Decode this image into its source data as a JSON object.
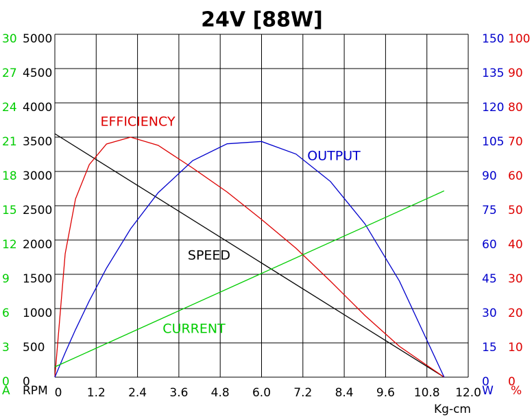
{
  "chart_data": {
    "type": "line",
    "title": "24V [88W]",
    "x_label": "Kg-cm",
    "xlim": [
      0,
      12
    ],
    "xticks": [
      0,
      1.2,
      2.4,
      3.6,
      4.8,
      {
        "value": 6,
        "label": "6.0"
      },
      7.2,
      8.4,
      9.6,
      10.8,
      {
        "value": 12,
        "label": "12.0"
      }
    ],
    "y_label": "RPM",
    "ylim": [
      0,
      5000
    ],
    "yticks": [
      0,
      500,
      1000,
      1500,
      2000,
      2500,
      3000,
      3500,
      4000,
      4500,
      5000
    ],
    "y_color": "#000000",
    "y2_label": "W",
    "y2lim": [
      0,
      150
    ],
    "y2ticks": [
      0,
      15,
      30,
      45,
      60,
      75,
      90,
      105,
      120,
      135,
      150
    ],
    "y2_color": "#0000cc",
    "y3_label": "A",
    "y3lim": [
      0,
      30
    ],
    "y3ticks": [
      0,
      3,
      6,
      9,
      12,
      15,
      18,
      21,
      24,
      27,
      30
    ],
    "y3_color": "#00cc00",
    "y4_label": "%",
    "y4lim": [
      0,
      100
    ],
    "y4ticks": [
      0,
      10,
      20,
      30,
      40,
      50,
      60,
      70,
      80,
      90,
      100
    ],
    "y4_color": "#dd0000",
    "grid": true,
    "series": [
      {
        "name": "SPEED",
        "color": "#000000",
        "axis": "y",
        "x": [
          0,
          11.3
        ],
        "values": [
          3550,
          0
        ]
      },
      {
        "name": "EFFICIENCY",
        "color": "#dd0000",
        "axis": "y4",
        "x": [
          0,
          0.3,
          0.6,
          1.0,
          1.5,
          2.2,
          3.0,
          4.0,
          5.0,
          6.0,
          7.0,
          8.0,
          9.0,
          10.0,
          11.3
        ],
        "values": [
          0,
          36,
          52,
          62,
          68,
          70,
          67.6,
          61,
          54,
          46,
          37.6,
          28,
          18,
          9,
          0
        ]
      },
      {
        "name": "OUTPUT",
        "color": "#0000cc",
        "axis": "y2",
        "x": [
          0,
          0.3,
          0.6,
          1.0,
          1.5,
          2.2,
          3.0,
          4.0,
          5.0,
          6.0,
          7.0,
          8.0,
          9.0,
          10.0,
          11.3
        ],
        "values": [
          0,
          10.7,
          20.8,
          33.4,
          47.7,
          64.9,
          80.7,
          94.7,
          102.1,
          103.1,
          97.6,
          85.6,
          67.1,
          42.1,
          0
        ]
      },
      {
        "name": "CURRENT",
        "color": "#00cc00",
        "axis": "y3",
        "x": [
          0,
          11.3
        ],
        "values": [
          0.9,
          16.3
        ]
      }
    ]
  }
}
